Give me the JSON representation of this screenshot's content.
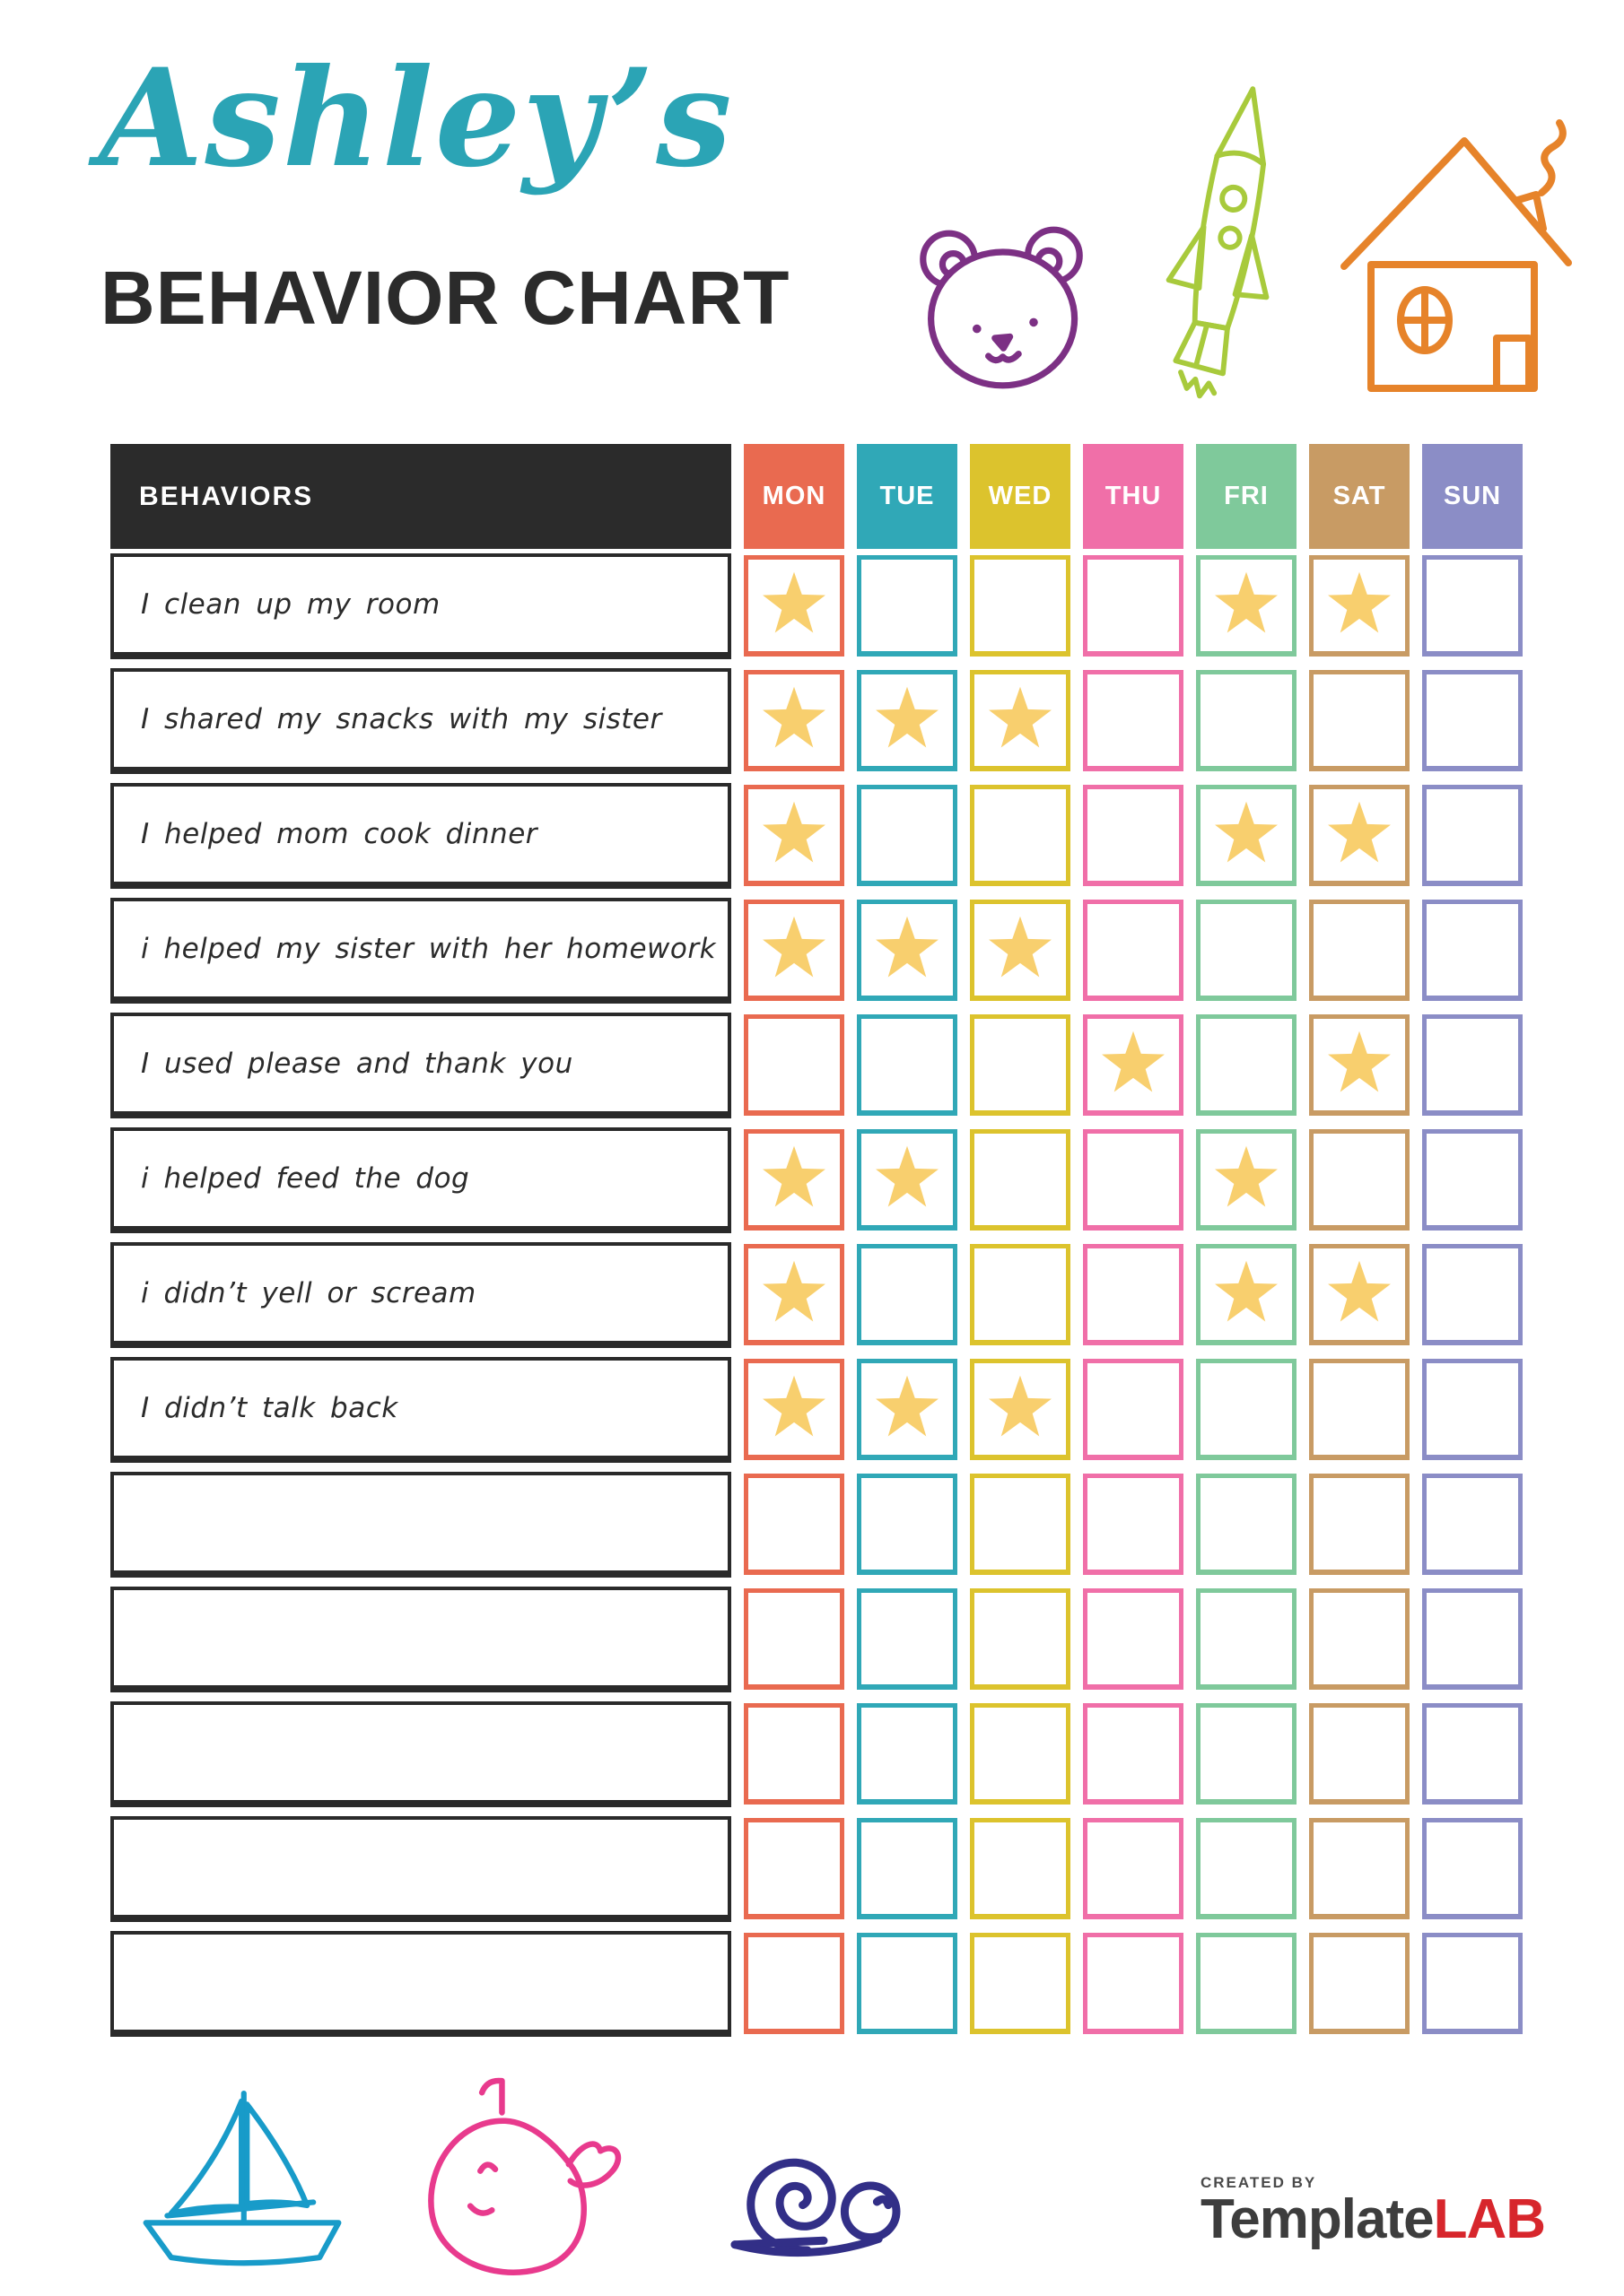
{
  "header": {
    "script_title": "Ashley’s",
    "script_title_color": "#2ba4b5",
    "main_title": "BEHAVIOR CHART",
    "main_title_color": "#2b2b2b",
    "doodles": [
      {
        "name": "bear",
        "color": "#7c3084"
      },
      {
        "name": "rocket",
        "color": "#a8ca3c"
      },
      {
        "name": "house",
        "color": "#e6832a"
      }
    ]
  },
  "table": {
    "behaviors_header": "BEHAVIORS",
    "header_bg": "#2b2b2b",
    "star_color": "#f8cf6e",
    "days": [
      {
        "label": "MON",
        "color": "#e96a50"
      },
      {
        "label": "TUE",
        "color": "#30a8b7"
      },
      {
        "label": "WED",
        "color": "#dcc32d"
      },
      {
        "label": "THU",
        "color": "#f06fa8"
      },
      {
        "label": "FRI",
        "color": "#7fc99b"
      },
      {
        "label": "SAT",
        "color": "#c89b64"
      },
      {
        "label": "SUN",
        "color": "#8b8dc6"
      }
    ],
    "rows": [
      {
        "label": "I clean up my room",
        "stars": [
          "MON",
          "FRI",
          "SAT"
        ]
      },
      {
        "label": "I shared my snacks with my sister",
        "stars": [
          "MON",
          "TUE",
          "WED"
        ]
      },
      {
        "label": "I helped mom cook dinner",
        "stars": [
          "MON",
          "FRI",
          "SAT"
        ]
      },
      {
        "label": "i helped my sister with her homework",
        "stars": [
          "MON",
          "TUE",
          "WED"
        ]
      },
      {
        "label": "I used please and thank you",
        "stars": [
          "THU",
          "SAT"
        ]
      },
      {
        "label": "i helped feed the dog",
        "stars": [
          "MON",
          "TUE",
          "FRI"
        ]
      },
      {
        "label": "i didn’t yell or scream",
        "stars": [
          "MON",
          "FRI",
          "SAT"
        ]
      },
      {
        "label": "I didn’t talk back",
        "stars": [
          "MON",
          "TUE",
          "WED"
        ]
      },
      {
        "label": "",
        "stars": []
      },
      {
        "label": "",
        "stars": []
      },
      {
        "label": "",
        "stars": []
      },
      {
        "label": "",
        "stars": []
      },
      {
        "label": "",
        "stars": []
      }
    ]
  },
  "footer": {
    "doodles": [
      {
        "name": "sailboat",
        "color": "#189bc9"
      },
      {
        "name": "whale",
        "color": "#e83a8d"
      },
      {
        "name": "snail",
        "color": "#322f87"
      }
    ],
    "logo": {
      "created_by": "CREATED BY",
      "created_by_color": "#4a4a4a",
      "brand_dark": "Template",
      "brand_dark_color": "#3d3d3d",
      "brand_red": "LAB",
      "brand_red_color": "#d7262c"
    }
  }
}
